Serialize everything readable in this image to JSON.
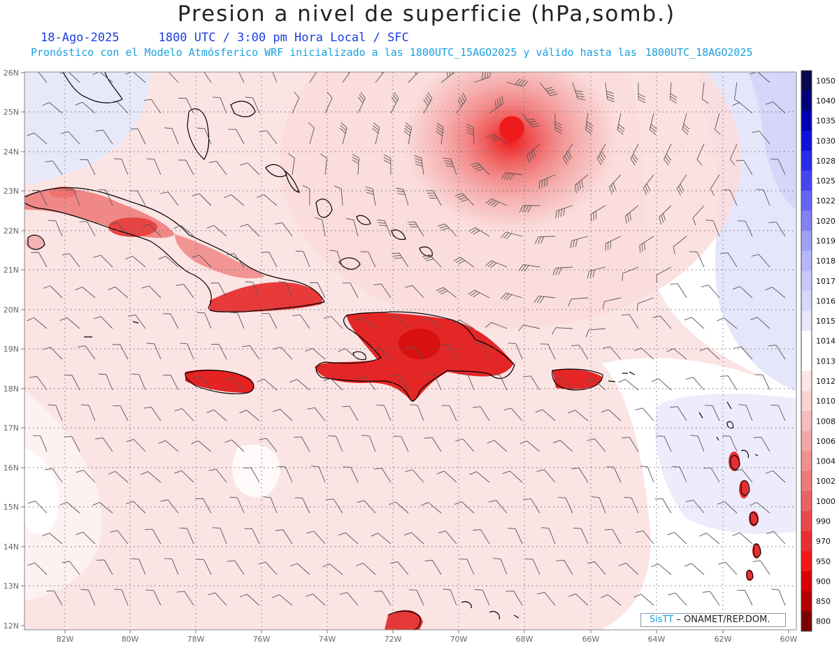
{
  "header": {
    "title": "Presion a nivel de superficie (hPa,somb.)",
    "date": "18-Ago-2025",
    "valid_time": "1800 UTC / 3:00 pm Hora Local / SFC",
    "forecast_text": "Pronóstico con el Modelo Atmósferico WRF inicializado a las 1800UTC_15AGO2025 y válido hasta las",
    "valid_until": "1800UTC_18AGO2025"
  },
  "axes": {
    "lon_labels": [
      "82W",
      "80W",
      "78W",
      "76W",
      "74W",
      "72W",
      "70W",
      "68W",
      "66W",
      "64W",
      "62W",
      "60W"
    ],
    "lat_labels": [
      "12N",
      "13N",
      "14N",
      "15N",
      "16N",
      "17N",
      "18N",
      "19N",
      "20N",
      "21N",
      "22N",
      "23N",
      "24N",
      "25N",
      "26N"
    ]
  },
  "colorbar": {
    "labels": [
      "1050",
      "1040",
      "1035",
      "1030",
      "1028",
      "1025",
      "1022",
      "1020",
      "1019",
      "1018",
      "1017",
      "1016",
      "1015",
      "1014",
      "1013",
      "1012",
      "1010",
      "1008",
      "1006",
      "1004",
      "1002",
      "1000",
      "990",
      "970",
      "950",
      "900",
      "850",
      "800"
    ],
    "colors": [
      "#0a0a4a",
      "#00007a",
      "#0000b0",
      "#1010d8",
      "#2a2ae8",
      "#4646f0",
      "#6464f4",
      "#8282f6",
      "#a0a0f8",
      "#b6b6fa",
      "#c8c8fb",
      "#d8d8fc",
      "#e8e8fd",
      "#ffffff",
      "#ffffff",
      "#fde6e6",
      "#fbd2d2",
      "#f8bcbc",
      "#f5a6a6",
      "#f29090",
      "#ee7a7a",
      "#ea6262",
      "#e84a4a",
      "#e83030",
      "#f01818",
      "#d80000",
      "#b00000",
      "#7a0000"
    ]
  },
  "credit": {
    "brand": "SisTT",
    "org": " – ONAMET/REP.DOM."
  },
  "features": {
    "cyclone_center": "surface-low-center",
    "regions": [
      "Cuba",
      "Jamaica",
      "Hispaniola",
      "Puerto Rico",
      "Lesser Antilles"
    ]
  }
}
